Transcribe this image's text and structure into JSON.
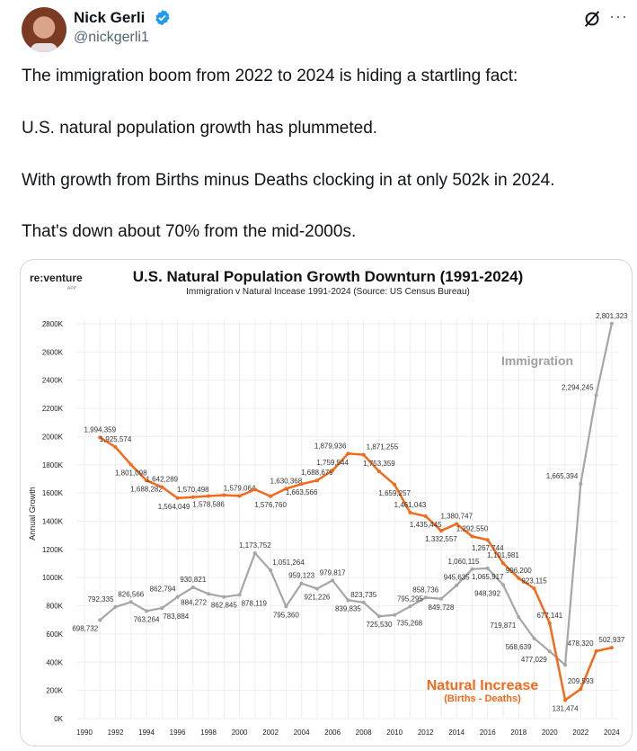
{
  "author": {
    "name": "Nick Gerli",
    "handle": "@nickgerli1",
    "verified": true
  },
  "icons": {
    "verified": "verified-badge-icon",
    "grok": "grok-icon",
    "more": "more-options-icon"
  },
  "more_label": "···",
  "tweet": {
    "lines": [
      "The immigration boom from 2022 to 2024 is hiding a startling fact:",
      "U.S. natural population growth has plummeted.",
      "With growth from Births minus Deaths clocking in at only 502k in 2024.",
      "That's down about 70% from the mid-2000s."
    ]
  },
  "colors": {
    "accent": "#1d9bf0",
    "natural": "#f26a1b",
    "immigration": "#a6a6a6"
  },
  "chart_data": {
    "type": "line",
    "logo": "re:venture",
    "logo_sub": "APP",
    "title": "U.S. Natural Population Growth Downturn (1991-2024)",
    "subtitle": "Immigration v Natural Incease 1991-2024 (Source: US Census Bureau)",
    "ylabel": "Annual Growth",
    "ylim": [
      0,
      2800000
    ],
    "yticks": [
      "0K",
      "200K",
      "400K",
      "600K",
      "800K",
      "1000K",
      "1200K",
      "1400K",
      "1600K",
      "1800K",
      "2000K",
      "2200K",
      "2400K",
      "2600K",
      "2800K"
    ],
    "xticks": [
      "1990",
      "1992",
      "1994",
      "1996",
      "1998",
      "2000",
      "2002",
      "2004",
      "2006",
      "2008",
      "2010",
      "2012",
      "2014",
      "2016",
      "2018",
      "2020",
      "2022",
      "2024"
    ],
    "x": [
      1991,
      1992,
      1993,
      1994,
      1995,
      1996,
      1997,
      1998,
      1999,
      2000,
      2001,
      2002,
      2003,
      2004,
      2005,
      2006,
      2007,
      2008,
      2009,
      2010,
      2011,
      2012,
      2013,
      2014,
      2015,
      2016,
      2017,
      2018,
      2019,
      2020,
      2021,
      2022,
      2023,
      2024
    ],
    "series": [
      {
        "name": "Natural Increase",
        "legend_sub": "(Births - Deaths)",
        "values": [
          1994359,
          1925574,
          1801098,
          1688282,
          1642289,
          1564049,
          1570498,
          1578586,
          1585000,
          1579064,
          1625000,
          1576760,
          1630368,
          1663566,
          1688679,
          1759544,
          1879936,
          1871255,
          1753359,
          1659257,
          1461043,
          1435445,
          1332557,
          1380747,
          1292550,
          1267744,
          1101981,
          996200,
          923115,
          677141,
          131474,
          209593,
          478320,
          502937
        ],
        "labels": [
          "1,994,359",
          "1,925,574",
          "1,801,098",
          "1,688,282",
          "1,642,289",
          "1,564,049",
          "1,570,498",
          "1,578,586",
          "",
          "1,579,064",
          "",
          "1,576,760",
          "1,630,368",
          "1,663,566",
          "1,688,679",
          "1,759,544",
          "1,879,936",
          "1,871,255",
          "1,753,359",
          "1,659,257",
          "1,461,043",
          "1,435,445",
          "1,332,557",
          "1,380,747",
          "1,292,550",
          "1,267,744",
          "1,101,981",
          "996,200",
          "923,115",
          "677,141",
          "131,474",
          "209,593",
          "478,320",
          "502,937"
        ]
      },
      {
        "name": "Immigration",
        "values": [
          698732,
          792335,
          826566,
          763264,
          783884,
          862794,
          930821,
          884272,
          862845,
          878119,
          1173752,
          1051264,
          795360,
          959123,
          921226,
          979817,
          839835,
          823735,
          725530,
          735268,
          795295,
          858736,
          849728,
          945635,
          1060115,
          1065917,
          948392,
          719871,
          568639,
          477029,
          380000,
          1665394,
          2294245,
          2801323
        ],
        "labels": [
          "698,732",
          "792,335",
          "826,566",
          "763,264",
          "783,884",
          "862,794",
          "930,821",
          "884,272",
          "862,845",
          "878,119",
          "1,173,752",
          "1,051,264",
          "795,360",
          "959,123",
          "921,226",
          "979,817",
          "839,835",
          "823,735",
          "725,530",
          "735,268",
          "795,295",
          "858,736",
          "849,728",
          "945,635",
          "1,060,115",
          "1,065,917",
          "948,392",
          "719,871",
          "568,639",
          "477,029",
          "",
          "1,665,394",
          "2,294,245",
          "2,801,323"
        ]
      }
    ]
  }
}
